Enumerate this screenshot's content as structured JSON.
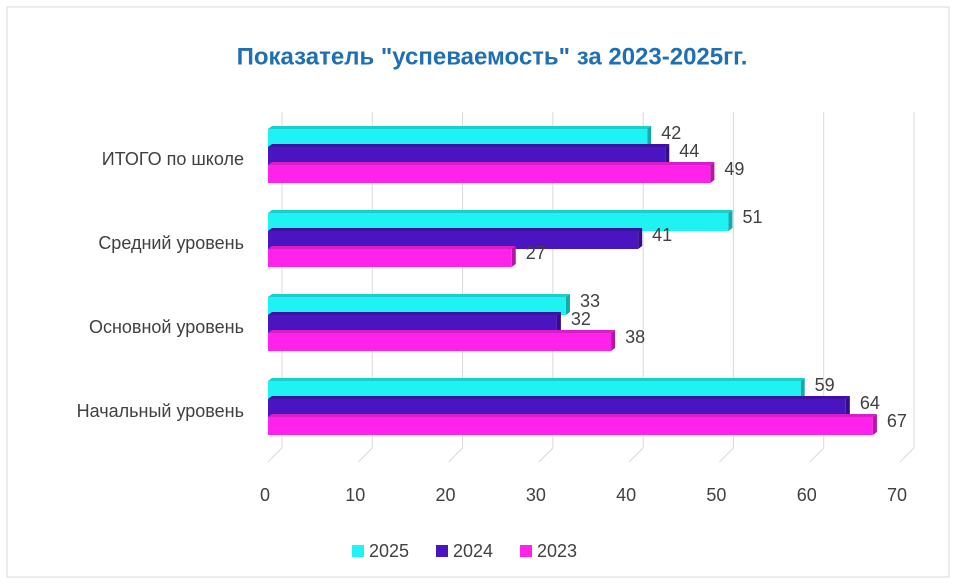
{
  "chart_data": {
    "type": "barh",
    "title": "Показатель \"успеваемость\" за 2023-2025гг.",
    "categories": [
      "ИТОГО по школе",
      "Средний уровень",
      "Основной уровень",
      "Начальный уровень"
    ],
    "series": [
      {
        "name": "2025",
        "color": "#1ef2f2",
        "values": [
          42,
          51,
          33,
          59
        ]
      },
      {
        "name": "2024",
        "color": "#4a14c0",
        "values": [
          44,
          41,
          32,
          64
        ]
      },
      {
        "name": "2023",
        "color": "#ff22ea",
        "values": [
          49,
          27,
          38,
          67
        ]
      }
    ],
    "xlim": [
      0,
      70
    ],
    "xticks": [
      0,
      10,
      20,
      30,
      40,
      50,
      60,
      70
    ],
    "grid": true,
    "legend": "bottom"
  }
}
